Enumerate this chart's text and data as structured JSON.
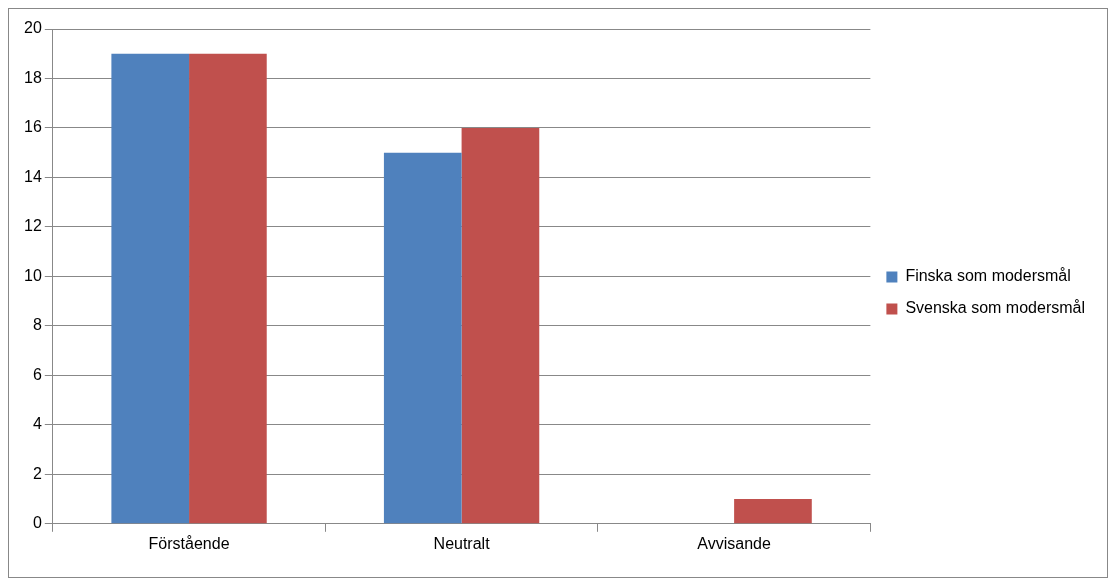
{
  "chart_data": {
    "type": "bar",
    "categories": [
      "Förstående",
      "Neutralt",
      "Avvisande"
    ],
    "series": [
      {
        "name": "Finska som modersmål",
        "color": "#4f81bd",
        "values": [
          19,
          15,
          0
        ]
      },
      {
        "name": "Svenska som modersmål",
        "color": "#c0504d",
        "values": [
          19,
          16,
          1
        ]
      }
    ],
    "ylim": [
      0,
      20
    ],
    "yticks": [
      0,
      2,
      4,
      6,
      8,
      10,
      12,
      14,
      16,
      18,
      20
    ],
    "grid": "y",
    "legend": "right"
  }
}
